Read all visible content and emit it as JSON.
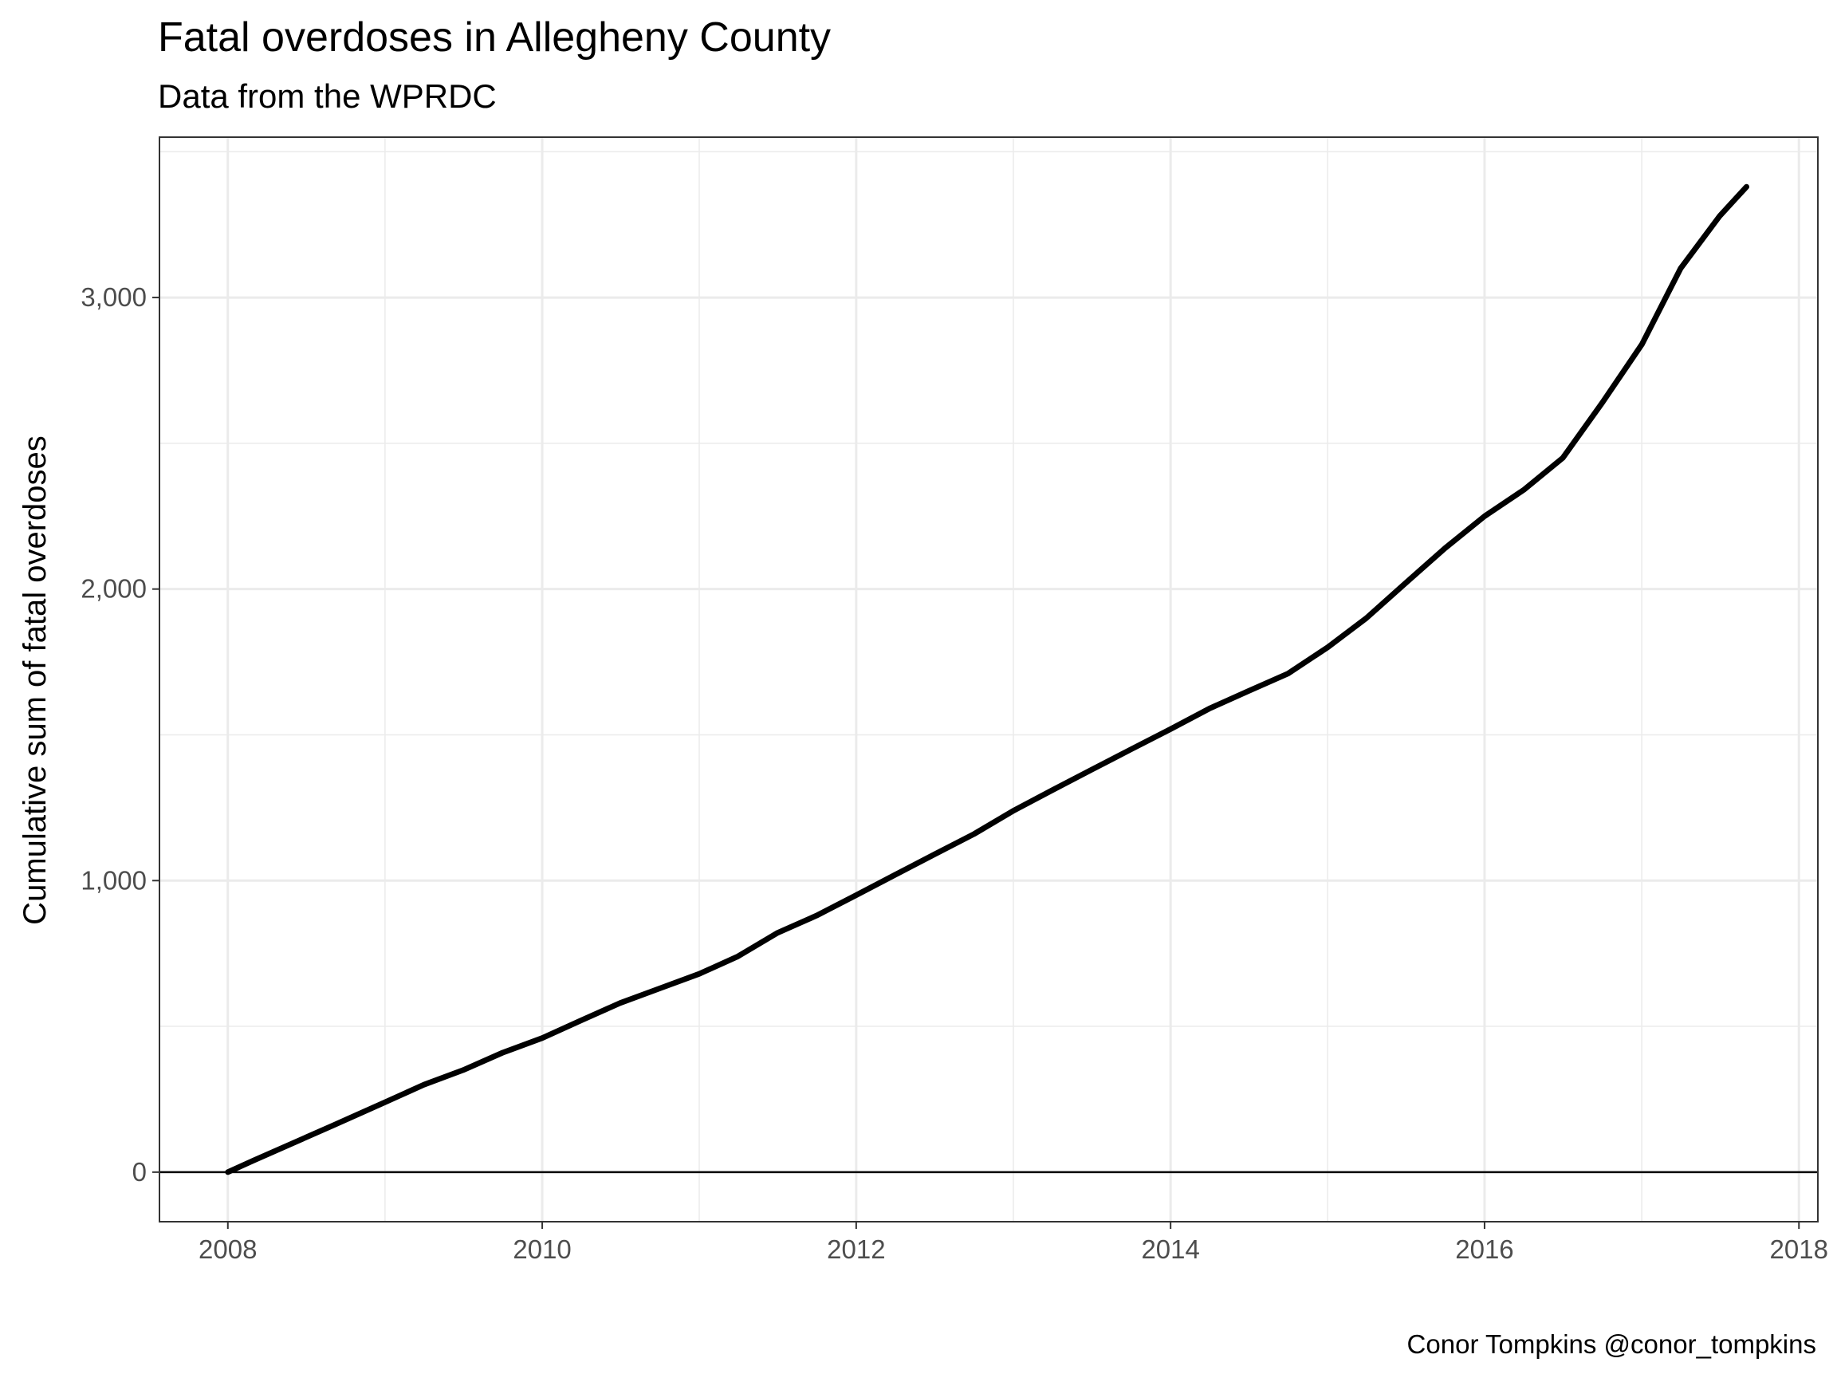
{
  "chart_data": {
    "type": "line",
    "title": "Fatal overdoses in Allegheny County",
    "subtitle": "Data from the WPRDC",
    "caption": "Conor Tompkins @conor_tompkins",
    "xlabel": "",
    "ylabel": "Cumulative sum of fatal overdoses",
    "x_ticks": [
      "2008",
      "2010",
      "2012",
      "2014",
      "2016",
      "2018"
    ],
    "y_ticks": [
      "0",
      "1,000",
      "2,000",
      "3,000"
    ],
    "x_range": [
      "2007-07-26",
      "2018-02-14"
    ],
    "ylim": [
      -170,
      3550
    ],
    "hline_at": 0,
    "grid": true,
    "series": [
      {
        "color": "#000000",
        "points": [
          [
            "2008-01-01",
            0
          ],
          [
            "2008-03-01",
            40
          ],
          [
            "2008-06-01",
            100
          ],
          [
            "2008-09-01",
            160
          ],
          [
            "2009-01-01",
            240
          ],
          [
            "2009-04-01",
            300
          ],
          [
            "2009-07-01",
            350
          ],
          [
            "2009-10-01",
            410
          ],
          [
            "2010-01-01",
            460
          ],
          [
            "2010-04-01",
            520
          ],
          [
            "2010-07-01",
            580
          ],
          [
            "2010-10-01",
            630
          ],
          [
            "2011-01-01",
            680
          ],
          [
            "2011-04-01",
            740
          ],
          [
            "2011-07-01",
            820
          ],
          [
            "2011-10-01",
            880
          ],
          [
            "2012-01-01",
            950
          ],
          [
            "2012-04-01",
            1020
          ],
          [
            "2012-07-01",
            1090
          ],
          [
            "2012-10-01",
            1160
          ],
          [
            "2013-01-01",
            1240
          ],
          [
            "2013-04-01",
            1310
          ],
          [
            "2013-07-01",
            1380
          ],
          [
            "2013-10-01",
            1450
          ],
          [
            "2014-01-01",
            1520
          ],
          [
            "2014-04-01",
            1590
          ],
          [
            "2014-07-01",
            1650
          ],
          [
            "2014-10-01",
            1710
          ],
          [
            "2015-01-01",
            1800
          ],
          [
            "2015-04-01",
            1900
          ],
          [
            "2015-07-01",
            2020
          ],
          [
            "2015-10-01",
            2140
          ],
          [
            "2016-01-01",
            2250
          ],
          [
            "2016-04-01",
            2340
          ],
          [
            "2016-07-01",
            2450
          ],
          [
            "2016-10-01",
            2640
          ],
          [
            "2017-01-01",
            2840
          ],
          [
            "2017-04-01",
            3100
          ],
          [
            "2017-07-01",
            3280
          ],
          [
            "2017-09-01",
            3380
          ]
        ]
      }
    ]
  }
}
